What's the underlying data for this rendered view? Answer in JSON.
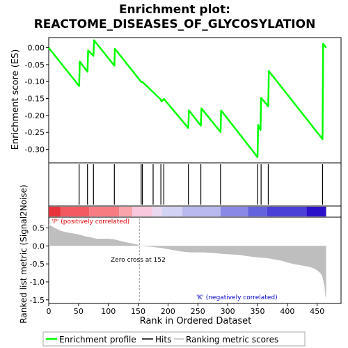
{
  "chart_data": {
    "type": "line",
    "title_line1": "Enrichment plot:",
    "title_line2": "REACTOME_DISEASES_OF_GLYCOSYLATION",
    "es_panel": {
      "ylabel": "Enrichment score (ES)",
      "ylim": [
        -0.34,
        0.03
      ],
      "yticks": [
        "0.00",
        "-0.05",
        "-0.10",
        "-0.15",
        "-0.20",
        "-0.25",
        "-0.30"
      ],
      "ytick_values": [
        0.0,
        -0.05,
        -0.1,
        -0.15,
        -0.2,
        -0.25,
        -0.3
      ],
      "line_color": "#00ff00",
      "grid": false,
      "series": [
        {
          "x": [
            0,
            51,
            52,
            65,
            66,
            75,
            76,
            110,
            111,
            155,
            157,
            188,
            189,
            191,
            193,
            234,
            235,
            255,
            256,
            288,
            289,
            350,
            351,
            355,
            356,
            368,
            369,
            459,
            460,
            465
          ],
          "y": [
            0.0,
            -0.113,
            -0.041,
            -0.071,
            -0.008,
            -0.024,
            0.022,
            -0.053,
            -0.003,
            -0.101,
            -0.101,
            -0.153,
            -0.159,
            -0.155,
            -0.151,
            -0.237,
            -0.185,
            -0.23,
            -0.179,
            -0.249,
            -0.185,
            -0.323,
            -0.228,
            -0.243,
            -0.148,
            -0.173,
            -0.069,
            -0.27,
            0.012,
            0.0
          ]
        }
      ]
    },
    "hits_panel": {
      "hit_ranks": [
        51,
        65,
        75,
        110,
        155,
        157,
        175,
        188,
        193,
        234,
        255,
        288,
        350,
        356,
        368,
        459
      ]
    },
    "gradient_bar": {
      "colors": [
        "#e8323c",
        "#f25a5f",
        "#f77c82",
        "#f9a3aa",
        "#f7c8de",
        "#e9d8ef",
        "#d2d2f4",
        "#b9b9ef",
        "#8a8ae6",
        "#6363dd",
        "#4a3fd6",
        "#2a10c8"
      ],
      "breaks": [
        0,
        20,
        68,
        118,
        140,
        174,
        190,
        224,
        288,
        334,
        366,
        432,
        465
      ]
    },
    "metric_panel": {
      "ylabel": "Ranked list metric (Signal2Noise)",
      "xlabel": "Rank in Ordered Dataset",
      "ylim": [
        -1.6,
        0.8
      ],
      "yticks": [
        "0.5",
        "0.0",
        "-0.5",
        "-1.0",
        "-1.5"
      ],
      "ytick_values": [
        0.5,
        0.0,
        -0.5,
        -1.0,
        -1.5
      ],
      "xlim": [
        0,
        490
      ],
      "xticks": [
        "0",
        "50",
        "100",
        "150",
        "200",
        "250",
        "300",
        "350",
        "400",
        "450"
      ],
      "xtick_values": [
        0,
        50,
        100,
        150,
        200,
        250,
        300,
        350,
        400,
        450
      ],
      "fill_color": "#bebebe",
      "zero_cross_rank": 152,
      "x": [
        0,
        5,
        10,
        20,
        30,
        40,
        50,
        60,
        70,
        80,
        100,
        110,
        120,
        130,
        140,
        150,
        152,
        160,
        170,
        180,
        190,
        200,
        210,
        220,
        230,
        240,
        250,
        260,
        270,
        280,
        290,
        300,
        310,
        320,
        330,
        340,
        350,
        360,
        370,
        380,
        390,
        400,
        410,
        420,
        430,
        440,
        445,
        450,
        455,
        458,
        460,
        462,
        463,
        464,
        465
      ],
      "values": [
        0.6,
        0.55,
        0.5,
        0.42,
        0.38,
        0.35,
        0.32,
        0.27,
        0.24,
        0.2,
        0.2,
        0.18,
        0.14,
        0.1,
        0.07,
        0.03,
        0.0,
        -0.01,
        -0.02,
        -0.04,
        -0.06,
        -0.09,
        -0.12,
        -0.15,
        -0.17,
        -0.18,
        -0.18,
        -0.18,
        -0.19,
        -0.2,
        -0.22,
        -0.23,
        -0.24,
        -0.25,
        -0.28,
        -0.3,
        -0.32,
        -0.33,
        -0.35,
        -0.38,
        -0.41,
        -0.46,
        -0.5,
        -0.53,
        -0.56,
        -0.6,
        -0.63,
        -0.68,
        -0.75,
        -0.82,
        -0.95,
        -1.1,
        -1.25,
        -1.4,
        -1.45
      ],
      "annotation_pos": "'P' (positively correlated)",
      "annotation_neg": "'K' (negatively correlated)",
      "annotation_zero": "Zero cross at 152",
      "pos_color": "#e00000",
      "neg_color": "#0000c8"
    },
    "legend": {
      "placement": "bottom",
      "items": [
        {
          "label": "Enrichment profile",
          "color": "#00ff00"
        },
        {
          "label": "Hits",
          "color": "#000000"
        },
        {
          "label": "Ranking metric scores",
          "color": "#bebebe"
        }
      ]
    }
  }
}
